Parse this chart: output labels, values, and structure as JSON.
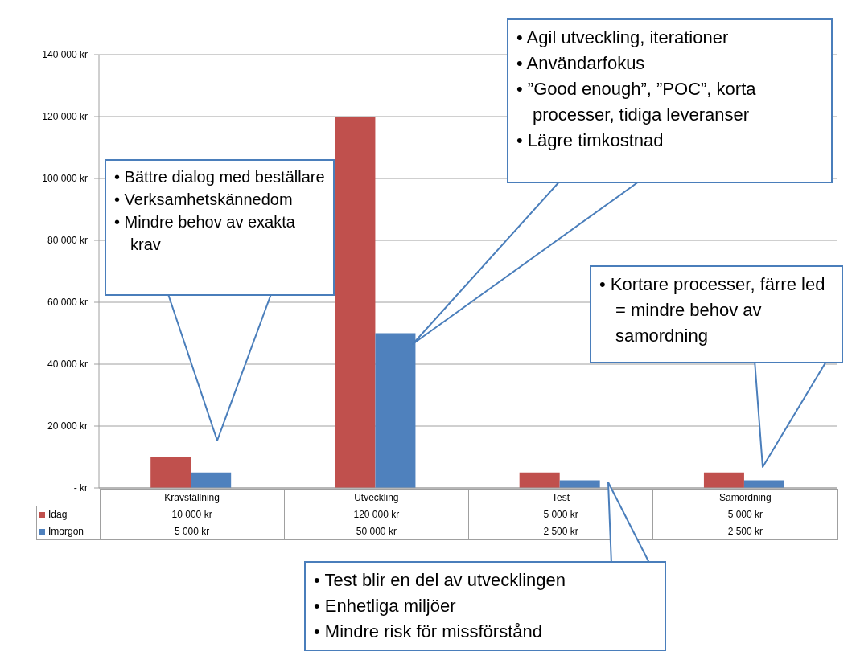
{
  "chart_data": {
    "type": "bar",
    "categories": [
      "Kravställning",
      "Utveckling",
      "Test",
      "Samordning"
    ],
    "series": [
      {
        "name": "Idag",
        "color": "#c0504d",
        "values": [
          10000,
          120000,
          5000,
          5000
        ],
        "value_labels": [
          "10 000 kr",
          "120 000 kr",
          "5 000 kr",
          "5 000 kr"
        ]
      },
      {
        "name": "Imorgon",
        "color": "#4f81bd",
        "values": [
          5000,
          50000,
          2500,
          2500
        ],
        "value_labels": [
          "5 000 kr",
          "50 000 kr",
          "2 500 kr",
          "2 500 kr"
        ]
      }
    ],
    "ylim": [
      0,
      140000
    ],
    "yticks": [
      {
        "value": 0,
        "label": "- kr"
      },
      {
        "value": 20000,
        "label": "20 000 kr"
      },
      {
        "value": 40000,
        "label": "40 000 kr"
      },
      {
        "value": 60000,
        "label": "60 000 kr"
      },
      {
        "value": 80000,
        "label": "80 000 kr"
      },
      {
        "value": 100000,
        "label": "100 000 kr"
      },
      {
        "value": 120000,
        "label": "120 000 kr"
      },
      {
        "value": 140000,
        "label": "140 000 kr"
      }
    ],
    "grid": "y",
    "legend": "bottom",
    "annotations": [
      "• Bättre dialog med beställare\n• Verksamhetskännedom\n• Mindre behov av exakta krav",
      "• Agil utveckling, iterationer\n• Användarfokus\n• ”Good enough”, ”POC”, korta processer, tidiga leveranser\n• Lägre timkostnad",
      "• Kortare processer, färre led = mindre behov av samordning",
      "• Test blir en del av utvecklingen\n• Enhetliga miljöer\n• Mindre risk för missförstånd"
    ]
  }
}
